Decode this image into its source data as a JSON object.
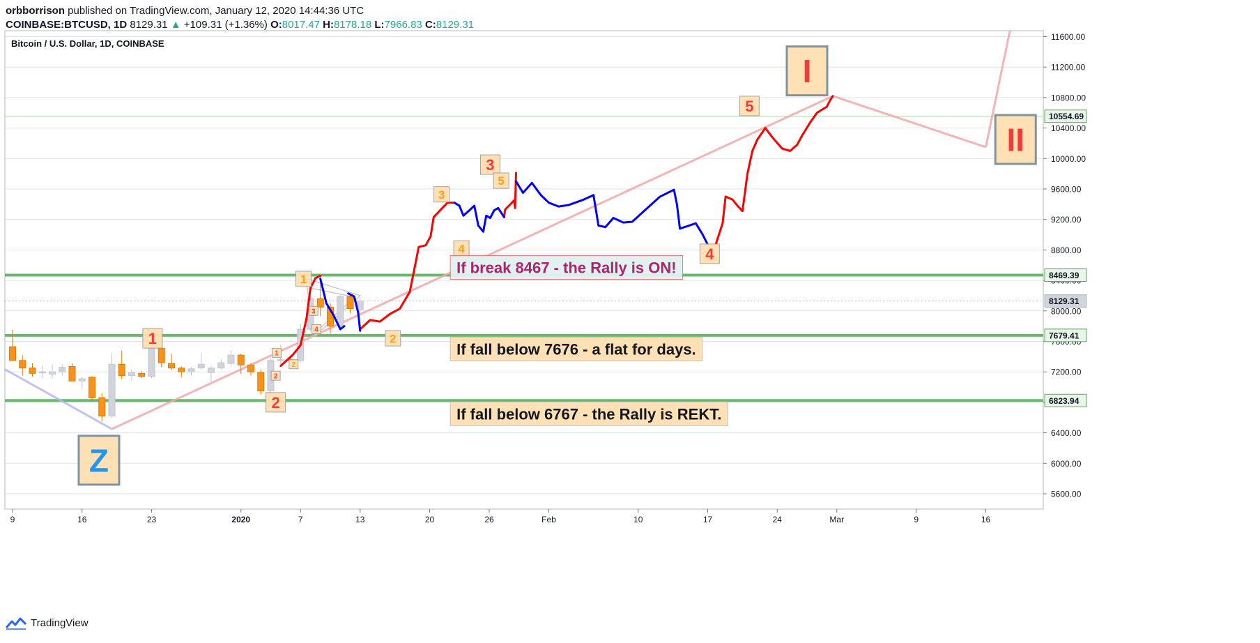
{
  "header": {
    "author": "orbborrison",
    "published": "published on TradingView.com, January 12, 2020 14:44:36 UTC",
    "symbol": "COINBASE:BTCUSD, 1D",
    "last": "8129.31",
    "change": "+109.31 (+1.36%)",
    "o_label": "O:",
    "o_value": "8017.47",
    "h_label": "H:",
    "h_value": "8178.18",
    "l_label": "L:",
    "l_value": "7966.83",
    "c_label": "C:",
    "c_value": "8129.31"
  },
  "footer": {
    "brand": "TradingView"
  },
  "colors": {
    "up": "#26a69a",
    "bull_candle": "#d1d4dc",
    "bear_candle": "#f7931a",
    "support": "#4caf50",
    "projection_red": "#ff0000",
    "projection_blue": "#0000ff",
    "trend": "#f4a6a6",
    "label_box": "#ffe0b2",
    "label_red": "#f23b3b",
    "label_orange": "#f7a21c",
    "label_blue": "#2196f3",
    "rally_text": "#b0226b"
  },
  "chart_data": {
    "type": "candlestick",
    "title": "Bitcoin / U.S. Dollar, 1D, COINBASE",
    "ylim": [
      5300,
      11750
    ],
    "y_ticks": [
      5600,
      6000,
      6400,
      6800,
      7200,
      7600,
      8000,
      8400,
      8800,
      9200,
      9600,
      10000,
      10400,
      10800,
      11200,
      11600
    ],
    "x_ticks": [
      "9",
      "16",
      "23",
      "2020",
      "7",
      "13",
      "20",
      "26",
      "Feb",
      "10",
      "17",
      "24",
      "Mar",
      "9",
      "16"
    ],
    "x_tick_days": [
      0,
      7,
      14,
      23,
      29,
      35,
      42,
      48,
      54,
      63,
      70,
      77,
      83,
      91,
      98
    ],
    "candles": [
      [
        7530,
        7750,
        7350,
        7350
      ],
      [
        7350,
        7420,
        7150,
        7250
      ],
      [
        7250,
        7310,
        7140,
        7180
      ],
      [
        7190,
        7280,
        7120,
        7200
      ],
      [
        7170,
        7300,
        7110,
        7200
      ],
      [
        7200,
        7290,
        7150,
        7260
      ],
      [
        7270,
        7310,
        7080,
        7080
      ],
      [
        7080,
        7130,
        6970,
        7110
      ],
      [
        7130,
        7140,
        6820,
        6860
      ],
      [
        6860,
        6920,
        6550,
        6620
      ],
      [
        6620,
        7450,
        6600,
        7300
      ],
      [
        7300,
        7480,
        7100,
        7150
      ],
      [
        7150,
        7240,
        7080,
        7190
      ],
      [
        7180,
        7210,
        7120,
        7140
      ],
      [
        7140,
        7520,
        7120,
        7510
      ],
      [
        7510,
        7690,
        7260,
        7320
      ],
      [
        7310,
        7440,
        7220,
        7250
      ],
      [
        7250,
        7270,
        7130,
        7200
      ],
      [
        7200,
        7260,
        7160,
        7240
      ],
      [
        7250,
        7450,
        7230,
        7300
      ],
      [
        7190,
        7280,
        7060,
        7250
      ],
      [
        7250,
        7370,
        7230,
        7320
      ],
      [
        7310,
        7480,
        7270,
        7420
      ],
      [
        7420,
        7440,
        7170,
        7290
      ],
      [
        7290,
        7310,
        7150,
        7200
      ],
      [
        7190,
        7230,
        6900,
        6950
      ],
      [
        6950,
        7380,
        6900,
        7350
      ],
      [
        7350,
        7560,
        7300,
        7360
      ],
      [
        7360,
        7400,
        7280,
        7350
      ],
      [
        7350,
        7830,
        7320,
        7760
      ],
      [
        7760,
        8200,
        7740,
        8160
      ],
      [
        8160,
        8450,
        7930,
        8050
      ],
      [
        8050,
        8100,
        7700,
        7800
      ],
      [
        7810,
        8210,
        7740,
        8190
      ],
      [
        8190,
        8230,
        7970,
        8030
      ],
      [
        8017.47,
        8178.18,
        7966.83,
        8129.31
      ]
    ],
    "horizontal_levels": [
      {
        "value": 8469.39,
        "label": "8469.39",
        "style": "thick-green"
      },
      {
        "value": 7679.41,
        "label": "7679.41",
        "style": "thick-green"
      },
      {
        "value": 6823.94,
        "label": "6823.94",
        "style": "thick-green"
      },
      {
        "value": 10554.69,
        "label": "10554.69",
        "style": "thin-green"
      },
      {
        "value": 8129.31,
        "label": "8129.31",
        "style": "dotted-gray"
      }
    ],
    "projection_red_path": [
      [
        35,
        7760
      ],
      [
        36,
        7880
      ],
      [
        37,
        7860
      ],
      [
        38,
        7960
      ],
      [
        39,
        8030
      ],
      [
        40,
        8250
      ],
      [
        40.6,
        8640
      ],
      [
        40.9,
        8840
      ],
      [
        41.6,
        8860
      ],
      [
        42.1,
        8980
      ],
      [
        42.4,
        9230
      ],
      [
        43.2,
        9340
      ],
      [
        43.8,
        9420
      ],
      [
        44.5,
        9420
      ],
      [
        49.5,
        9230
      ],
      [
        49.6,
        9330
      ],
      [
        50.5,
        9450
      ],
      [
        50.6,
        9350
      ],
      [
        50.7,
        9810
      ],
      [
        70.8,
        8870
      ],
      [
        71.5,
        9150
      ],
      [
        71.8,
        9500
      ],
      [
        72.5,
        9460
      ],
      [
        73,
        9380
      ],
      [
        73.5,
        9310
      ],
      [
        74,
        9800
      ],
      [
        74.5,
        10100
      ],
      [
        75,
        10250
      ],
      [
        75.8,
        10400
      ],
      [
        76.5,
        10280
      ],
      [
        77.5,
        10130
      ],
      [
        78.3,
        10100
      ],
      [
        79,
        10180
      ],
      [
        79.5,
        10300
      ],
      [
        80.3,
        10470
      ],
      [
        81,
        10600
      ],
      [
        82,
        10680
      ],
      [
        82.3,
        10760
      ],
      [
        82.6,
        10820
      ]
    ],
    "projection_blue_path": [
      [
        44.5,
        9420
      ],
      [
        45,
        9380
      ],
      [
        45.4,
        9250
      ],
      [
        46,
        9320
      ],
      [
        46.5,
        9380
      ],
      [
        46.9,
        9120
      ],
      [
        47.4,
        9040
      ],
      [
        47.7,
        9250
      ],
      [
        48.1,
        9220
      ],
      [
        48.5,
        9320
      ],
      [
        48.9,
        9350
      ],
      [
        49.5,
        9230
      ],
      [
        50.7,
        9700
      ],
      [
        51.4,
        9550
      ],
      [
        52.3,
        9680
      ],
      [
        53.2,
        9520
      ],
      [
        54,
        9420
      ],
      [
        55,
        9370
      ],
      [
        56,
        9390
      ],
      [
        57.5,
        9460
      ],
      [
        58.5,
        9520
      ],
      [
        59,
        9120
      ],
      [
        59.7,
        9100
      ],
      [
        60.5,
        9220
      ],
      [
        61.5,
        9160
      ],
      [
        62.4,
        9170
      ],
      [
        63.5,
        9300
      ],
      [
        65.2,
        9500
      ],
      [
        66.6,
        9590
      ],
      [
        66.9,
        9400
      ],
      [
        67.2,
        9080
      ],
      [
        67.9,
        9110
      ],
      [
        68.8,
        9150
      ],
      [
        69.5,
        9000
      ],
      [
        70,
        8870
      ]
    ],
    "trend_lines": [
      {
        "from": [
          10,
          6450
        ],
        "to": [
          82.6,
          10820
        ]
      },
      {
        "from": [
          82.6,
          10820
        ],
        "to": [
          98,
          10150
        ]
      },
      {
        "from": [
          98,
          10150
        ],
        "to": [
          100.5,
          11720
        ]
      },
      {
        "from": [
          -1,
          7250
        ],
        "to": [
          10,
          6450
        ],
        "color": "blue"
      }
    ],
    "wave_labels": [
      {
        "text": "Z",
        "day": 8.7,
        "price": 6040,
        "size": "xl",
        "color": "blue"
      },
      {
        "text": "I",
        "day": 80,
        "price": 11150,
        "size": "xl",
        "color": "red"
      },
      {
        "text": "II",
        "day": 101,
        "price": 10250,
        "size": "xl",
        "color": "red"
      },
      {
        "text": "1",
        "day": 14.1,
        "price": 7640,
        "size": "m",
        "color": "red"
      },
      {
        "text": "2",
        "day": 26.5,
        "price": 6800,
        "size": "m",
        "color": "red"
      },
      {
        "text": "1",
        "day": 29.3,
        "price": 8420,
        "size": "s",
        "color": "orange"
      },
      {
        "text": "2",
        "day": 38.3,
        "price": 7640,
        "size": "s",
        "color": "orange"
      },
      {
        "text": "3",
        "day": 43.2,
        "price": 9530,
        "size": "s",
        "color": "orange"
      },
      {
        "text": "4",
        "day": 45.2,
        "price": 8820,
        "size": "s",
        "color": "orange"
      },
      {
        "text": "3",
        "day": 48.1,
        "price": 9920,
        "size": "m",
        "color": "red"
      },
      {
        "text": "5",
        "day": 49.2,
        "price": 9710,
        "size": "s",
        "color": "orange"
      },
      {
        "text": "4",
        "day": 70.2,
        "price": 8750,
        "size": "m",
        "color": "red"
      },
      {
        "text": "5",
        "day": 74.2,
        "price": 10690,
        "size": "m",
        "color": "red"
      },
      {
        "text": "1",
        "day": 26.6,
        "price": 7450,
        "size": "xs",
        "color": "red"
      },
      {
        "text": "2",
        "day": 26.5,
        "price": 7150,
        "size": "xs",
        "color": "red"
      },
      {
        "text": "2",
        "day": 28.3,
        "price": 7300,
        "size": "xs",
        "color": "orange"
      },
      {
        "text": "3",
        "day": 30.3,
        "price": 8000,
        "size": "xs",
        "color": "red"
      },
      {
        "text": "4",
        "day": 30.6,
        "price": 7760,
        "size": "xs",
        "color": "red"
      }
    ],
    "annotations": [
      {
        "text": "If break 8467 - the Rally is ON!",
        "day": 44.5,
        "price": 8570,
        "style": "rally"
      },
      {
        "text": "If fall below 7676 - a flat for days.",
        "day": 44.5,
        "price": 7500,
        "style": "plain"
      },
      {
        "text": "If fall below 6767 - the Rally is REKT.",
        "day": 44.5,
        "price": 6650,
        "style": "plain"
      }
    ]
  }
}
